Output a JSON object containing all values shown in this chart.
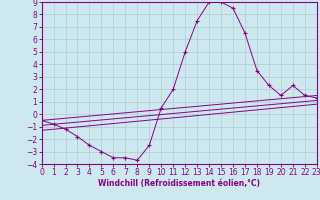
{
  "xlabel": "Windchill (Refroidissement éolien,°C)",
  "xlim": [
    0,
    23
  ],
  "ylim": [
    -4,
    9
  ],
  "xticks": [
    0,
    1,
    2,
    3,
    4,
    5,
    6,
    7,
    8,
    9,
    10,
    11,
    12,
    13,
    14,
    15,
    16,
    17,
    18,
    19,
    20,
    21,
    22,
    23
  ],
  "yticks": [
    -4,
    -3,
    -2,
    -1,
    0,
    1,
    2,
    3,
    4,
    5,
    6,
    7,
    8,
    9
  ],
  "bg_color": "#cde8ef",
  "line_color": "#880088",
  "grid_color": "#b0cccc",
  "curve_x": [
    0,
    1,
    2,
    3,
    4,
    5,
    6,
    7,
    8,
    9,
    10,
    11,
    12,
    13,
    14,
    15,
    16,
    17,
    18,
    19,
    20,
    21,
    22,
    23
  ],
  "curve_y": [
    -0.5,
    -0.8,
    -1.2,
    -1.8,
    -2.5,
    -3.0,
    -3.5,
    -3.5,
    -3.7,
    -2.5,
    0.5,
    2.0,
    5.0,
    7.5,
    9.0,
    9.0,
    8.5,
    6.5,
    3.5,
    2.3,
    1.5,
    2.3,
    1.5,
    1.3
  ],
  "line1_x": [
    0,
    23
  ],
  "line1_y": [
    -0.5,
    1.5
  ],
  "line2_x": [
    0,
    23
  ],
  "line2_y": [
    -0.9,
    1.1
  ],
  "line3_x": [
    0,
    23
  ],
  "line3_y": [
    -1.3,
    0.8
  ],
  "tick_fontsize": 5.5,
  "xlabel_fontsize": 5.5,
  "xlabel_bold": true
}
